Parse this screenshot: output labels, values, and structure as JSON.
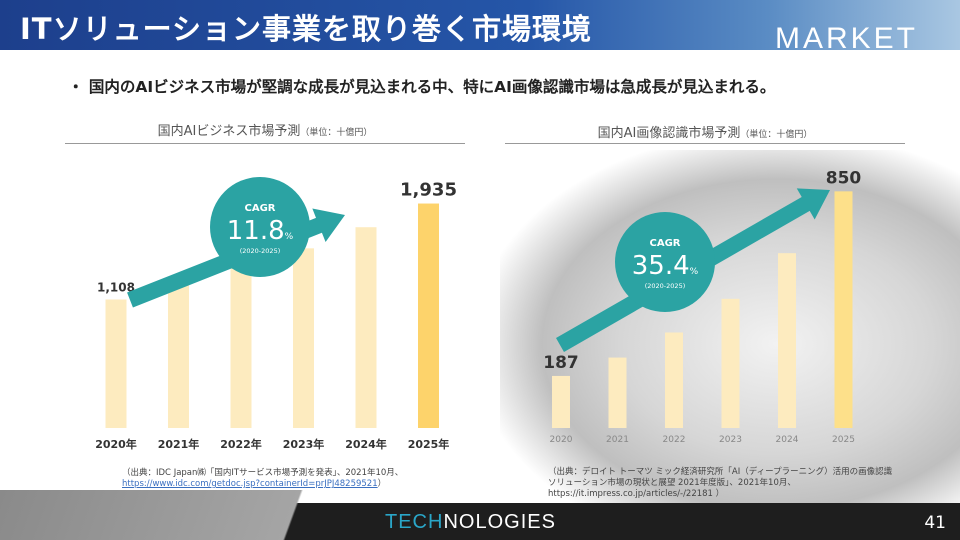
{
  "header": {
    "title": "ITソリューション事業を取り巻く市場環境",
    "section": "MARKET"
  },
  "bullet": "・ 国内のAIビジネス市場が堅調な成長が見込まれる中、特にAI画像認識市場は急成長が見込まれる。",
  "chart_data": [
    {
      "type": "bar",
      "title": "国内AIビジネス市場予測",
      "unit": "（単位：十億円）",
      "categories": [
        "2020年",
        "2021年",
        "2022年",
        "2023年",
        "2024年",
        "2025年"
      ],
      "values": [
        1108,
        1239,
        1385,
        1549,
        1731,
        1935
      ],
      "labels": [
        "1,108",
        "",
        "",
        "",
        "",
        "1,935"
      ],
      "ylim": [
        0,
        2000
      ],
      "cagr": {
        "label": "CAGR",
        "value": "11.8",
        "pct": "%",
        "period": "(2020-2025)"
      },
      "bar_color": "#fdebbf",
      "highlight_color": "#fdd36b",
      "accent": "#2ba3a3"
    },
    {
      "type": "bar",
      "title": "国内AI画像認識市場予測",
      "unit": "（単位：十億円）",
      "categories": [
        "2020",
        "2021",
        "2022",
        "2023",
        "2024",
        "2025"
      ],
      "values": [
        187,
        253,
        343,
        464,
        628,
        850
      ],
      "labels": [
        "187",
        "",
        "",
        "",
        "",
        "850"
      ],
      "ylim": [
        0,
        880
      ],
      "cagr": {
        "label": "CAGR",
        "value": "35.4",
        "pct": "%",
        "period": "(2020-2025)"
      },
      "bar_color": "#fdebbf",
      "highlight_color": "#fde08a",
      "accent": "#2ba3a3"
    }
  ],
  "sources": {
    "left_line1": "（出典：IDC Japan㈱「国内ITサービス市場予測を発表」、2021年10月、",
    "left_link": "https://www.idc.com/getdoc.jsp?containerId=prJPJ48259521",
    "left_end": "）",
    "right_line1": "（出典：デロイト トーマツ ミック経済研究所「AI（ディープラーニング）活用の画像認識",
    "right_line2": "ソリューション市場の現状と展望 2021年度版」、2021年10月、",
    "right_line3": "https://it.impress.co.jp/articles/-/22181 ）"
  },
  "footer": {
    "brand_hl": "TECH",
    "brand_rest": "NOLOGIES",
    "page": "41"
  }
}
